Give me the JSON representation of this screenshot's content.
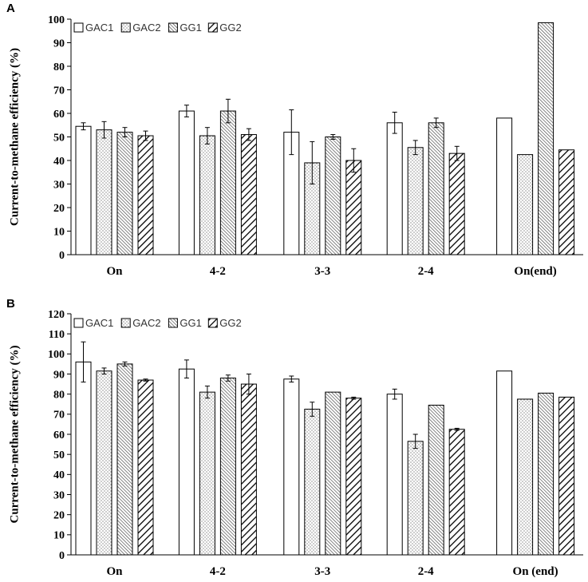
{
  "chart_data": [
    {
      "panel": "A",
      "type": "bar",
      "ylabel": "Current-to-methane efficiency (%)",
      "xlabel": "",
      "ylim": [
        0,
        100
      ],
      "ytick_step": 10,
      "yticks": [
        "0",
        "10",
        "20",
        "30",
        "40",
        "50",
        "60",
        "70",
        "80",
        "90",
        "100"
      ],
      "categories": [
        "On",
        "4-2",
        "3-3",
        "2-4",
        "On(end)"
      ],
      "legend_position": "top-left",
      "series": [
        {
          "name": "GAC1",
          "values": [
            54.5,
            61,
            52,
            56,
            58
          ],
          "errors": [
            1.5,
            2.5,
            9.5,
            4.5,
            null
          ]
        },
        {
          "name": "GAC2",
          "values": [
            53,
            50.5,
            39,
            45.5,
            42.5
          ],
          "errors": [
            3.5,
            3.5,
            9,
            3,
            null
          ]
        },
        {
          "name": "GG1",
          "values": [
            52,
            61,
            50,
            56,
            98.5
          ],
          "errors": [
            2,
            5,
            1,
            2,
            null
          ]
        },
        {
          "name": "GG2",
          "values": [
            50.5,
            51,
            40,
            43,
            44.5
          ],
          "errors": [
            2,
            2.5,
            5,
            3,
            null
          ]
        }
      ]
    },
    {
      "panel": "B",
      "type": "bar",
      "ylabel": "Current-to-methane efficiency (%)",
      "xlabel": "",
      "ylim": [
        0,
        120
      ],
      "ytick_step": 10,
      "yticks": [
        "0",
        "10",
        "20",
        "30",
        "40",
        "50",
        "60",
        "70",
        "80",
        "90",
        "100",
        "110",
        "120"
      ],
      "categories": [
        "On",
        "4-2",
        "3-3",
        "2-4",
        "On (end)"
      ],
      "legend_position": "top-left",
      "series": [
        {
          "name": "GAC1",
          "values": [
            96,
            92.5,
            87.5,
            80,
            91.5
          ],
          "errors": [
            10,
            4.5,
            1.5,
            2.5,
            null
          ]
        },
        {
          "name": "GAC2",
          "values": [
            91.5,
            81,
            72.5,
            56.5,
            77.5
          ],
          "errors": [
            1.5,
            3,
            3.5,
            3.5,
            null
          ]
        },
        {
          "name": "GG1",
          "values": [
            95,
            88,
            81,
            74.5,
            80.5
          ],
          "errors": [
            1,
            1.5,
            null,
            null,
            null
          ]
        },
        {
          "name": "GG2",
          "values": [
            87,
            85,
            78,
            62.5,
            78.5
          ],
          "errors": [
            0.5,
            5,
            0.5,
            0.5,
            null
          ]
        }
      ]
    }
  ]
}
